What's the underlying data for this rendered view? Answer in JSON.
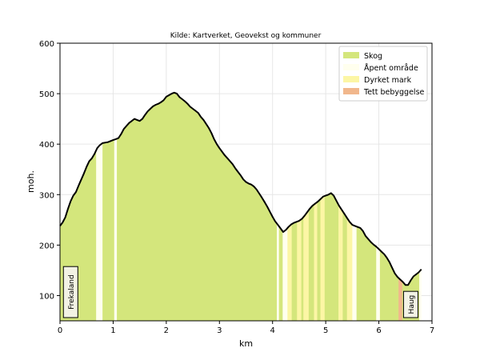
{
  "chart_data": {
    "type": "area",
    "title": "Kilde: Kartverket, Geovekst og kommuner",
    "xlabel": "km",
    "ylabel": "moh.",
    "xlim": [
      0,
      7
    ],
    "ylim": [
      50,
      600
    ],
    "xticks": [
      "0",
      "1",
      "2",
      "3",
      "4",
      "5",
      "6",
      "7"
    ],
    "yticks": [
      "100",
      "200",
      "300",
      "400",
      "500",
      "600"
    ],
    "grid": true,
    "legend_position": "top-right",
    "legend": [
      {
        "name": "Skog",
        "color": "#d4e67c"
      },
      {
        "name": "Åpent område",
        "color": "#ffffee"
      },
      {
        "name": "Dyrket mark",
        "color": "#fcf6a5"
      },
      {
        "name": "Tett bebyggelse",
        "color": "#f1b78c"
      }
    ],
    "profile": {
      "x": [
        0,
        0.05,
        0.1,
        0.15,
        0.2,
        0.25,
        0.3,
        0.35,
        0.4,
        0.45,
        0.5,
        0.55,
        0.6,
        0.65,
        0.7,
        0.75,
        0.8,
        0.9,
        1.0,
        1.05,
        1.1,
        1.15,
        1.2,
        1.25,
        1.3,
        1.35,
        1.4,
        1.45,
        1.5,
        1.55,
        1.6,
        1.65,
        1.7,
        1.75,
        1.8,
        1.85,
        1.9,
        1.95,
        2.0,
        2.05,
        2.1,
        2.15,
        2.2,
        2.25,
        2.3,
        2.35,
        2.4,
        2.45,
        2.5,
        2.55,
        2.6,
        2.65,
        2.7,
        2.75,
        2.8,
        2.85,
        2.9,
        2.95,
        3.0,
        3.05,
        3.1,
        3.15,
        3.2,
        3.25,
        3.3,
        3.35,
        3.4,
        3.45,
        3.5,
        3.55,
        3.6,
        3.65,
        3.7,
        3.75,
        3.8,
        3.85,
        3.9,
        3.95,
        4.0,
        4.05,
        4.1,
        4.15,
        4.2,
        4.25,
        4.3,
        4.35,
        4.4,
        4.45,
        4.5,
        4.55,
        4.6,
        4.65,
        4.7,
        4.75,
        4.8,
        4.85,
        4.9,
        4.95,
        5.0,
        5.05,
        5.1,
        5.15,
        5.2,
        5.25,
        5.3,
        5.35,
        5.4,
        5.45,
        5.5,
        5.55,
        5.6,
        5.65,
        5.7,
        5.75,
        5.8,
        5.85,
        5.9,
        5.95,
        6.0,
        6.05,
        6.1,
        6.15,
        6.2,
        6.25,
        6.3,
        6.35,
        6.4,
        6.45,
        6.5,
        6.55,
        6.6,
        6.65,
        6.7,
        6.75,
        6.8
      ],
      "y": [
        238,
        245,
        255,
        272,
        287,
        298,
        305,
        318,
        330,
        342,
        355,
        366,
        372,
        381,
        392,
        398,
        402,
        404,
        408,
        410,
        412,
        420,
        430,
        436,
        442,
        446,
        450,
        448,
        446,
        450,
        458,
        465,
        470,
        475,
        478,
        480,
        483,
        487,
        494,
        497,
        500,
        502,
        500,
        493,
        489,
        485,
        480,
        474,
        470,
        466,
        462,
        454,
        448,
        440,
        432,
        422,
        410,
        400,
        392,
        385,
        378,
        372,
        366,
        360,
        352,
        345,
        338,
        330,
        325,
        322,
        320,
        316,
        310,
        302,
        294,
        285,
        276,
        266,
        256,
        247,
        240,
        233,
        226,
        230,
        236,
        241,
        244,
        246,
        248,
        252,
        258,
        265,
        272,
        278,
        282,
        286,
        291,
        296,
        298,
        300,
        303,
        298,
        288,
        278,
        270,
        262,
        254,
        246,
        240,
        238,
        236,
        234,
        228,
        218,
        212,
        206,
        201,
        197,
        192,
        187,
        182,
        175,
        166,
        155,
        144,
        137,
        132,
        127,
        121,
        121,
        130,
        138,
        142,
        146,
        152
      ]
    },
    "land_cover": [
      {
        "from": 0.0,
        "to": 0.68,
        "class": "Skog"
      },
      {
        "from": 0.68,
        "to": 0.8,
        "class": "Åpent område"
      },
      {
        "from": 0.8,
        "to": 1.02,
        "class": "Skog"
      },
      {
        "from": 1.02,
        "to": 1.07,
        "class": "Åpent område"
      },
      {
        "from": 1.07,
        "to": 4.08,
        "class": "Skog"
      },
      {
        "from": 4.08,
        "to": 4.12,
        "class": "Åpent område"
      },
      {
        "from": 4.12,
        "to": 4.19,
        "class": "Skog"
      },
      {
        "from": 4.19,
        "to": 4.28,
        "class": "Åpent område"
      },
      {
        "from": 4.28,
        "to": 4.36,
        "class": "Dyrket mark"
      },
      {
        "from": 4.36,
        "to": 4.46,
        "class": "Skog"
      },
      {
        "from": 4.46,
        "to": 4.54,
        "class": "Dyrket mark"
      },
      {
        "from": 4.54,
        "to": 4.58,
        "class": "Skog"
      },
      {
        "from": 4.58,
        "to": 4.68,
        "class": "Dyrket mark"
      },
      {
        "from": 4.68,
        "to": 4.78,
        "class": "Skog"
      },
      {
        "from": 4.78,
        "to": 4.84,
        "class": "Dyrket mark"
      },
      {
        "from": 4.84,
        "to": 4.9,
        "class": "Skog"
      },
      {
        "from": 4.9,
        "to": 4.98,
        "class": "Dyrket mark"
      },
      {
        "from": 4.98,
        "to": 5.24,
        "class": "Skog"
      },
      {
        "from": 5.24,
        "to": 5.32,
        "class": "Dyrket mark"
      },
      {
        "from": 5.32,
        "to": 5.4,
        "class": "Skog"
      },
      {
        "from": 5.4,
        "to": 5.5,
        "class": "Dyrket mark"
      },
      {
        "from": 5.5,
        "to": 5.58,
        "class": "Åpent område"
      },
      {
        "from": 5.58,
        "to": 5.95,
        "class": "Skog"
      },
      {
        "from": 5.95,
        "to": 6.02,
        "class": "Åpent område"
      },
      {
        "from": 6.02,
        "to": 6.37,
        "class": "Skog"
      },
      {
        "from": 6.37,
        "to": 6.44,
        "class": "Tett bebyggelse"
      },
      {
        "from": 6.44,
        "to": 6.76,
        "class": "Skog"
      },
      {
        "from": 6.76,
        "to": 6.8,
        "class": "Åpent område"
      }
    ],
    "annotations": [
      {
        "text": "Frekaland",
        "x": 0.2
      },
      {
        "text": "Haug",
        "x": 6.6
      }
    ]
  }
}
